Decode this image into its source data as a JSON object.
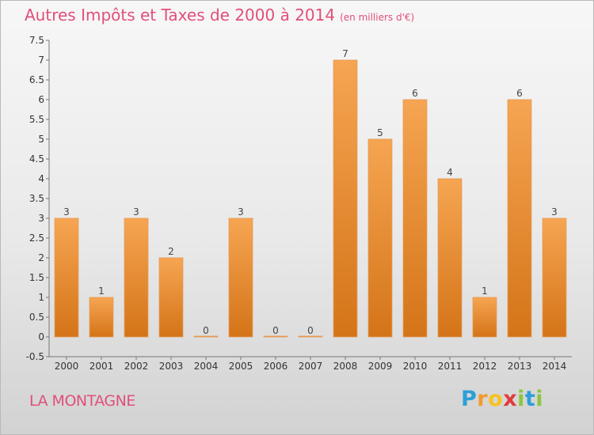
{
  "header": {
    "title": "Autres Impôts et Taxes de 2000 à 2014",
    "subtitle": "(en milliers d'€)"
  },
  "footer": {
    "commune": "LA MONTAGNE",
    "brand": "Proxiti",
    "brand_letters": [
      "P",
      "r",
      "o",
      "x",
      "i",
      "t",
      "i"
    ]
  },
  "colors": {
    "bar_light": "#f6a552",
    "bar_dark": "#d47418",
    "title": "#e0507a"
  },
  "chart_data": {
    "type": "bar",
    "title": "Autres Impôts et Taxes de 2000 à 2014",
    "categories": [
      "2000",
      "2001",
      "2002",
      "2003",
      "2004",
      "2005",
      "2006",
      "2007",
      "2008",
      "2009",
      "2010",
      "2011",
      "2012",
      "2013",
      "2014"
    ],
    "values": [
      3,
      1,
      3,
      2,
      0,
      3,
      0,
      0,
      7,
      5,
      6,
      4,
      1,
      6,
      3
    ],
    "ylim": [
      -0.5,
      7.5
    ],
    "yticks": [
      "-0.5",
      "0",
      "0.5",
      "1",
      "1.5",
      "2",
      "2.5",
      "3",
      "3.5",
      "4",
      "4.5",
      "5",
      "5.5",
      "6",
      "6.5",
      "7",
      "7.5"
    ],
    "grid": false,
    "xlabel": "",
    "ylabel": ""
  }
}
